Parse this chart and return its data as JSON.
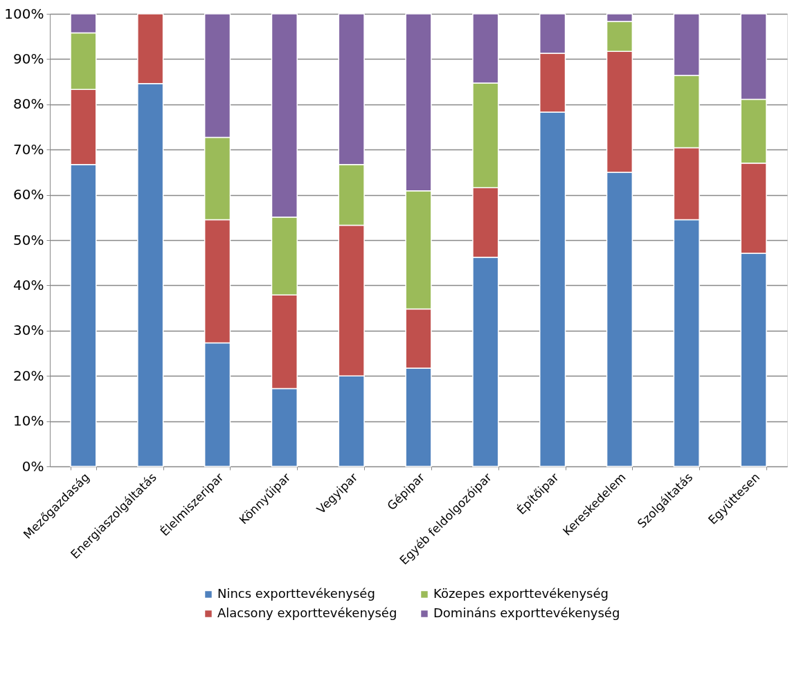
{
  "chart_data": {
    "type": "bar",
    "stacked": true,
    "categories": [
      "Mezőgazdaság",
      "Energiaszolgáltatás",
      "Élelmiszeripar",
      "Könnyűipar",
      "Vegyipar",
      "Gépipar",
      "Egyéb feldolgozóipar",
      "Építőipar",
      "Kereskedelem",
      "Szolgáltatás",
      "Együttesen"
    ],
    "series": [
      {
        "name": "Nincs exporttevékenység",
        "color": "#4f81bd",
        "values": [
          66.7,
          84.6,
          27.3,
          17.2,
          20.0,
          21.7,
          46.2,
          78.3,
          65.0,
          54.5,
          47.1
        ]
      },
      {
        "name": "Alacsony exporttevékenység",
        "color": "#c0504d",
        "values": [
          16.6,
          15.4,
          27.2,
          20.7,
          33.3,
          13.1,
          15.4,
          13.0,
          26.7,
          15.9,
          19.9
        ]
      },
      {
        "name": "Közepes exporttevékenység",
        "color": "#9bbb59",
        "values": [
          12.5,
          null,
          18.2,
          17.2,
          13.4,
          26.1,
          23.1,
          null,
          6.6,
          16.0,
          14.1
        ]
      },
      {
        "name": "Domináns exporttevékenység",
        "color": "#8064a2",
        "values": [
          4.2,
          null,
          27.3,
          44.9,
          33.3,
          39.1,
          15.3,
          8.7,
          1.7,
          13.6,
          18.9
        ]
      }
    ],
    "ylim": [
      0,
      100
    ],
    "yticks": [
      {
        "value": 0,
        "label": "0%"
      },
      {
        "value": 10,
        "label": "10%"
      },
      {
        "value": 20,
        "label": "20%"
      },
      {
        "value": 30,
        "label": "30%"
      },
      {
        "value": 40,
        "label": "40%"
      },
      {
        "value": 50,
        "label": "50%"
      },
      {
        "value": 60,
        "label": "60%"
      },
      {
        "value": 70,
        "label": "70%"
      },
      {
        "value": 80,
        "label": "80%"
      },
      {
        "value": 90,
        "label": "90%"
      },
      {
        "value": 100,
        "label": "100%"
      }
    ],
    "grid": "y",
    "legend": "bottom"
  }
}
